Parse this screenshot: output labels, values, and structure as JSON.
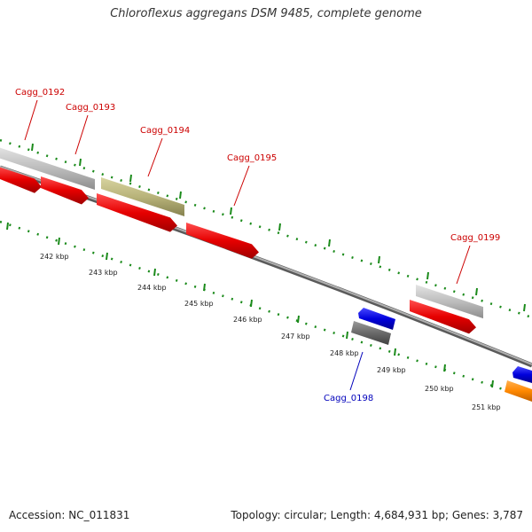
{
  "title": "Chloroflexus aggregans DSM 9485, complete genome",
  "footer": {
    "accession": "Accession: NC_011831",
    "summary": "Topology: circular; Length: 4,684,931 bp; Genes: 3,787"
  },
  "colors": {
    "forward_cds": "#e60000",
    "reverse_cds": "#0000dd",
    "label_forward": "#cc0000",
    "label_reverse": "#0000bb",
    "gray_feature": "#bdbdbd",
    "olive_feature": "#b8b37a",
    "dark_feature": "#6a6a6a",
    "orange_feature": "#ff8800",
    "backbone": "#8a8a8a",
    "tick": "#1a8a1a"
  },
  "scale_labels": [
    "242 kbp",
    "243 kbp",
    "244 kbp",
    "245 kbp",
    "246 kbp",
    "247 kbp",
    "248 kbp",
    "249 kbp",
    "250 kbp",
    "251 kbp"
  ],
  "gene_labels": [
    {
      "id": "cagg-0192",
      "text": "Cagg_0192",
      "strand": "forward"
    },
    {
      "id": "cagg-0193",
      "text": "Cagg_0193",
      "strand": "forward"
    },
    {
      "id": "cagg-0194",
      "text": "Cagg_0194",
      "strand": "forward"
    },
    {
      "id": "cagg-0195",
      "text": "Cagg_0195",
      "strand": "forward"
    },
    {
      "id": "cagg-0199",
      "text": "Cagg_0199",
      "strand": "forward"
    },
    {
      "id": "cagg-0198",
      "text": "Cagg_0198",
      "strand": "reverse"
    }
  ]
}
